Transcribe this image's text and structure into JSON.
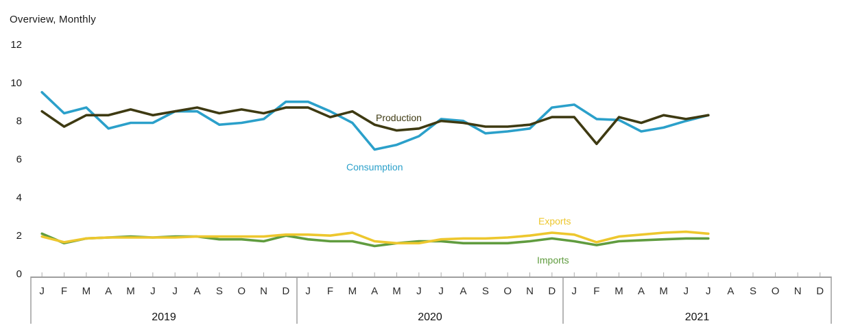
{
  "title": "Overview, Monthly",
  "colors": {
    "production": "#3e3a12",
    "consumption": "#2ba0ca",
    "exports": "#edc72e",
    "imports": "#609c3f",
    "axis_line": "#9e9e9e",
    "tick": "#ababab",
    "axis_text": "#2b2b2b",
    "year_text": "#111111",
    "title_text": "#1a1a1a"
  },
  "chart_data": {
    "type": "line",
    "title": "Overview, Monthly",
    "xlabel": "",
    "ylabel": "",
    "ylim": [
      0,
      12
    ],
    "grid": false,
    "legend_position": "inline-labels",
    "y_axis": {
      "ticks": [
        12,
        10,
        8,
        6,
        4,
        2,
        0
      ]
    },
    "x_axis": {
      "years": [
        "2019",
        "2020",
        "2021"
      ],
      "month_labels": [
        "J",
        "F",
        "M",
        "A",
        "M",
        "J",
        "J",
        "A",
        "S",
        "O",
        "N",
        "D"
      ],
      "months_shown_per_year": [
        12,
        12,
        12
      ],
      "data_ends_at": "2021-07"
    },
    "series": [
      {
        "name": "Production",
        "color": "#3e3a12",
        "values": [
          8.5,
          7.7,
          8.3,
          8.3,
          8.6,
          8.3,
          8.5,
          8.7,
          8.4,
          8.6,
          8.4,
          8.7,
          8.7,
          8.2,
          8.5,
          7.8,
          7.5,
          7.6,
          8.0,
          7.9,
          7.7,
          7.7,
          7.8,
          8.2,
          8.2,
          6.8,
          8.2,
          7.9,
          8.3,
          8.1,
          8.3
        ]
      },
      {
        "name": "Consumption",
        "color": "#2ba0ca",
        "values": [
          9.5,
          8.4,
          8.7,
          7.6,
          7.9,
          7.9,
          8.5,
          8.5,
          7.8,
          7.9,
          8.1,
          9.0,
          9.0,
          8.5,
          7.9,
          6.5,
          6.75,
          7.2,
          8.1,
          8.0,
          7.35,
          7.45,
          7.6,
          8.7,
          8.85,
          8.1,
          8.05,
          7.45,
          7.65,
          8.0,
          8.3
        ]
      },
      {
        "name": "Exports",
        "color": "#edc72e",
        "values": [
          1.95,
          1.65,
          1.85,
          1.9,
          1.9,
          1.9,
          1.9,
          1.95,
          1.95,
          1.95,
          1.95,
          2.05,
          2.05,
          2.0,
          2.15,
          1.7,
          1.6,
          1.6,
          1.8,
          1.85,
          1.85,
          1.9,
          2.0,
          2.15,
          2.05,
          1.65,
          1.95,
          2.05,
          2.15,
          2.2,
          2.1
        ]
      },
      {
        "name": "Imports",
        "color": "#609c3f",
        "values": [
          2.1,
          1.6,
          1.85,
          1.9,
          1.95,
          1.9,
          1.95,
          1.95,
          1.8,
          1.8,
          1.7,
          2.0,
          1.8,
          1.7,
          1.7,
          1.45,
          1.6,
          1.7,
          1.7,
          1.6,
          1.6,
          1.6,
          1.7,
          1.85,
          1.7,
          1.5,
          1.7,
          1.75,
          1.8,
          1.85,
          1.85
        ]
      }
    ],
    "inline_labels": [
      {
        "series": "Production",
        "text": "Production"
      },
      {
        "series": "Consumption",
        "text": "Consumption"
      },
      {
        "series": "Exports",
        "text": "Exports"
      },
      {
        "series": "Imports",
        "text": "Imports"
      }
    ]
  }
}
